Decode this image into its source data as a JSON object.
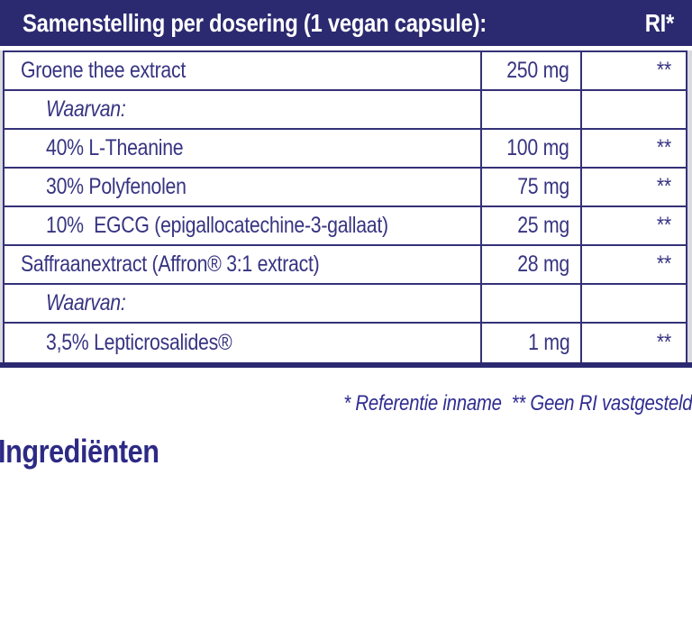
{
  "header": {
    "title": "Samenstelling per dosering (1 vegan capsule):",
    "ri_label": "RI*"
  },
  "table": {
    "rows": [
      {
        "name": "Groene thee extract",
        "amount": "250 mg",
        "ri": "**"
      },
      {
        "name": "Waarvan:",
        "amount": "",
        "ri": ""
      },
      {
        "name": "40% L-Theanine",
        "amount": "100 mg",
        "ri": "**"
      },
      {
        "name": "30% Polyfenolen",
        "amount": "75 mg",
        "ri": "**"
      },
      {
        "name": "10%  EGCG (epigallocatechine-3-gallaat)",
        "amount": "25 mg",
        "ri": "**"
      },
      {
        "name": "Saffraanextract (Affron® 3:1 extract)",
        "amount": "28 mg",
        "ri": "**"
      },
      {
        "name": "Waarvan:",
        "amount": "",
        "ri": ""
      },
      {
        "name": "3,5% Lepticrosalides®",
        "amount": "1 mg",
        "ri": "**"
      }
    ]
  },
  "footnote": "* Referentie inname  ** Geen RI vastgesteld",
  "section_heading": "Ingrediënten",
  "colors": {
    "header_background": "#2b2a70",
    "table_border": "#343178",
    "table_text": "#373481",
    "footnote_text": "#2f2c91",
    "heading_text": "#2d2a85",
    "side_strip": "#d9d9e0",
    "background": "#ffffff"
  }
}
